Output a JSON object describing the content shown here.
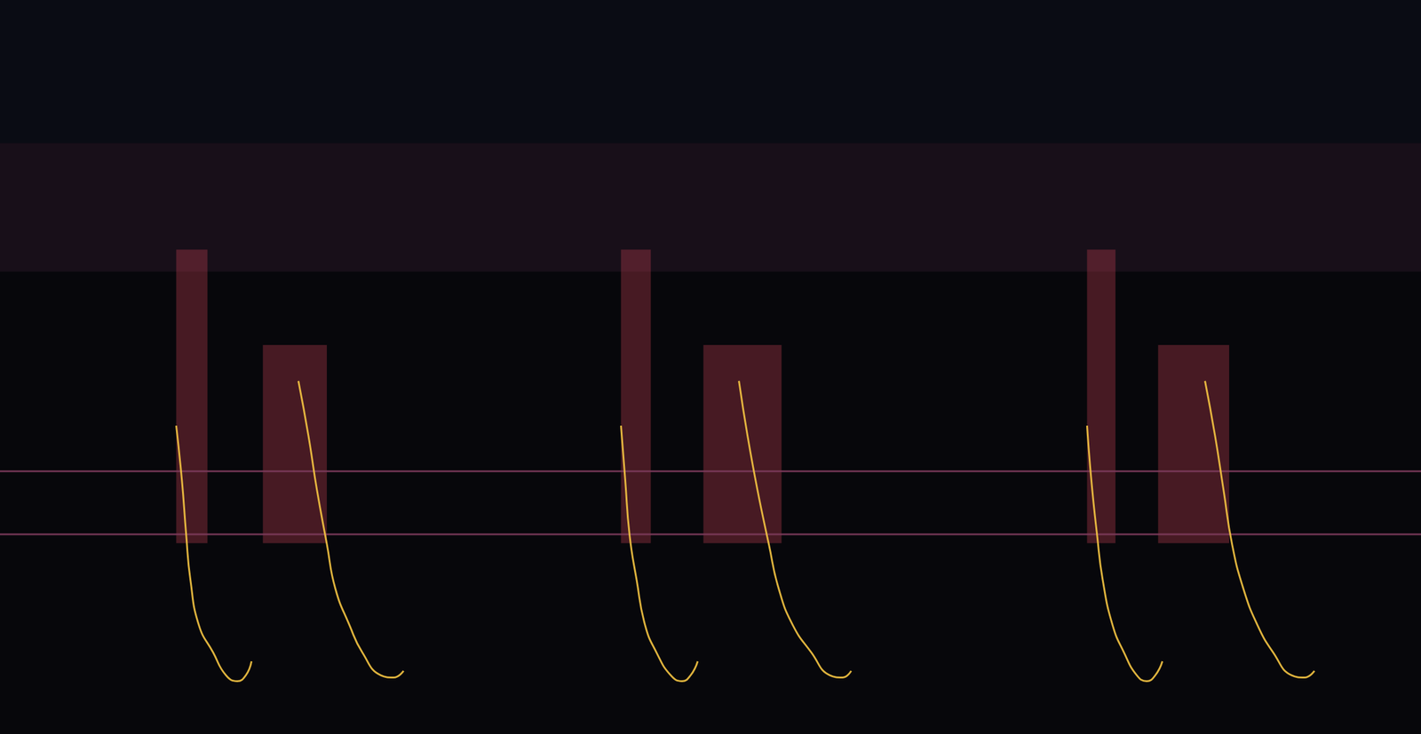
{
  "chart_data": {
    "type": "line",
    "xlim": [
      0,
      100
    ],
    "ylim": [
      0,
      100
    ],
    "tick_labels": false,
    "grid": false,
    "regions": [
      {
        "x": [
          0,
          100
        ],
        "y": [
          80.5,
          100
        ],
        "color": "#121826"
      },
      {
        "x": [
          0,
          100
        ],
        "y": [
          63,
          80.5
        ],
        "color": "#3a1f35"
      },
      {
        "x": [
          12.4,
          14.6
        ],
        "y": [
          26,
          66
        ],
        "color": "#c0404f"
      },
      {
        "x": [
          18.5,
          23.0
        ],
        "y": [
          26,
          53
        ],
        "color": "#c0404f"
      },
      {
        "x": [
          43.7,
          45.8
        ],
        "y": [
          26,
          66
        ],
        "color": "#c0404f"
      },
      {
        "x": [
          49.5,
          55.0
        ],
        "y": [
          26,
          53
        ],
        "color": "#c0404f"
      },
      {
        "x": [
          76.5,
          78.5
        ],
        "y": [
          26,
          66
        ],
        "color": "#c0404f"
      },
      {
        "x": [
          81.5,
          86.5
        ],
        "y": [
          26,
          53
        ],
        "color": "#c0404f"
      }
    ],
    "series": [
      {
        "color": "#7a3a5a",
        "x": [
          0,
          100
        ],
        "values": [
          35.8,
          35.8
        ]
      },
      {
        "color": "#7a3a5a",
        "x": [
          0,
          100
        ],
        "values": [
          27.2,
          27.2
        ]
      },
      {
        "color": "#f5c542",
        "x": [
          12.4,
          12.8,
          13.1,
          13.4,
          14.0,
          15.0,
          15.9,
          16.7,
          17.3,
          17.7
        ],
        "values": [
          42.0,
          34.6,
          27.2,
          21.0,
          14.8,
          11.1,
          8.0,
          7.2,
          8.0,
          9.9
        ]
      },
      {
        "color": "#f5c542",
        "x": [
          21.0,
          21.7,
          22.3,
          23.0,
          23.6,
          24.6,
          25.5,
          26.8,
          27.7,
          28.4
        ],
        "values": [
          48.1,
          40.7,
          33.3,
          25.9,
          19.8,
          14.8,
          11.1,
          8.0,
          7.7,
          8.6
        ]
      },
      {
        "color": "#f5c542",
        "x": [
          43.7,
          44.0,
          44.3,
          44.8,
          45.4,
          46.2,
          47.2,
          48.0,
          48.6,
          49.1
        ],
        "values": [
          42.0,
          34.6,
          27.2,
          21.0,
          14.8,
          11.1,
          8.0,
          7.2,
          8.0,
          9.9
        ]
      },
      {
        "color": "#f5c542",
        "x": [
          52.0,
          52.6,
          53.3,
          54.1,
          54.8,
          55.8,
          57.1,
          58.4,
          59.3,
          59.9
        ],
        "values": [
          48.1,
          40.7,
          33.3,
          25.9,
          19.8,
          14.8,
          11.1,
          8.0,
          7.7,
          8.6
        ]
      },
      {
        "color": "#f5c542",
        "x": [
          76.5,
          76.8,
          77.2,
          77.6,
          78.3,
          79.1,
          80.0,
          80.7,
          81.3,
          81.8
        ],
        "values": [
          42.0,
          34.6,
          27.2,
          21.0,
          14.8,
          11.1,
          8.0,
          7.2,
          8.0,
          9.9
        ]
      },
      {
        "color": "#f5c542",
        "x": [
          84.8,
          85.5,
          86.1,
          86.7,
          87.5,
          88.5,
          89.6,
          90.9,
          91.8,
          92.5
        ],
        "values": [
          48.1,
          40.7,
          33.3,
          25.9,
          19.8,
          14.8,
          11.1,
          8.0,
          7.7,
          8.6
        ]
      }
    ]
  }
}
